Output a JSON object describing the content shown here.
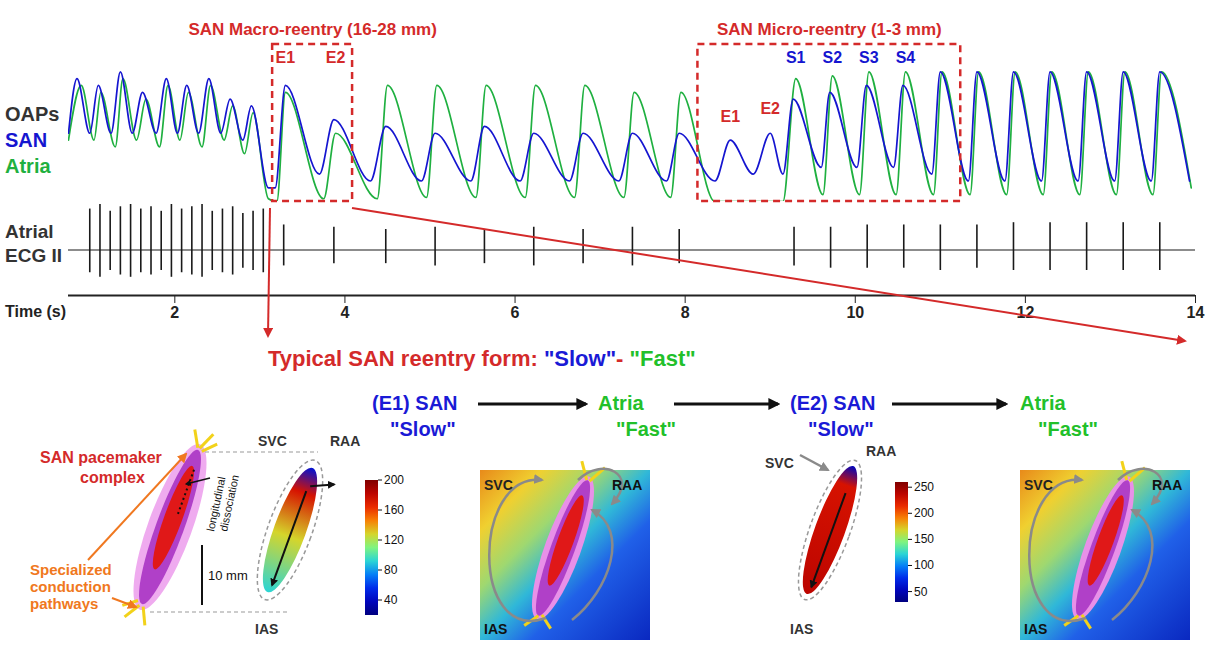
{
  "chart_data": {
    "type": "line",
    "ylabel": "OAPs",
    "xlabel": "Time (s)",
    "xlim": [
      0.75,
      14
    ],
    "xticks": [
      2,
      4,
      6,
      8,
      10,
      12,
      14
    ],
    "ylim": [
      0,
      1.15
    ],
    "tick_labels": "x",
    "series": [
      {
        "name": "SAN",
        "color": "#1515d0",
        "x": [
          0.75,
          0.85,
          1.0,
          1.1,
          1.25,
          1.36,
          1.5,
          1.62,
          1.78,
          1.9,
          2.03,
          2.14,
          2.28,
          2.4,
          2.54,
          2.65,
          2.8,
          2.9,
          3.1,
          3.18,
          3.3,
          3.7,
          3.87,
          4.3,
          4.48,
          4.9,
          5.06,
          5.48,
          5.64,
          6.06,
          6.22,
          6.64,
          6.8,
          7.22,
          7.38,
          7.78,
          7.93,
          8.35,
          8.53,
          8.8,
          9.0,
          9.15,
          9.27,
          9.6,
          9.7,
          10.02,
          10.13,
          10.45,
          10.56,
          10.9,
          11.0,
          11.33,
          11.43,
          11.76,
          11.86,
          12.19,
          12.29,
          12.62,
          12.72,
          13.05,
          13.15,
          13.48,
          13.58,
          13.93
        ],
        "values": [
          0.5,
          0.9,
          0.5,
          0.85,
          0.5,
          0.95,
          0.5,
          0.8,
          0.5,
          0.9,
          0.5,
          0.85,
          0.5,
          0.9,
          0.5,
          0.75,
          0.45,
          0.7,
          0.1,
          0.1,
          0.85,
          0.2,
          0.6,
          0.15,
          0.55,
          0.15,
          0.5,
          0.15,
          0.55,
          0.15,
          0.5,
          0.15,
          0.5,
          0.15,
          0.5,
          0.15,
          0.5,
          0.15,
          0.45,
          0.2,
          0.5,
          0.2,
          0.75,
          0.25,
          0.8,
          0.25,
          0.85,
          0.25,
          0.85,
          0.2,
          0.95,
          0.15,
          0.95,
          0.15,
          0.95,
          0.15,
          0.95,
          0.15,
          0.95,
          0.15,
          0.95,
          0.15,
          0.95,
          0.15
        ]
      },
      {
        "name": "Atria",
        "color": "#1fb040",
        "x": [
          0.75,
          0.9,
          1.05,
          1.13,
          1.3,
          1.39,
          1.55,
          1.66,
          1.82,
          1.92,
          2.06,
          2.16,
          2.32,
          2.42,
          2.58,
          2.68,
          2.82,
          2.92,
          3.1,
          3.2,
          3.3,
          3.75,
          3.89,
          4.38,
          4.5,
          4.96,
          5.08,
          5.54,
          5.66,
          6.12,
          6.24,
          6.7,
          6.82,
          7.28,
          7.4,
          7.83,
          7.95,
          8.35,
          9.15,
          9.3,
          9.62,
          9.73,
          10.05,
          10.16,
          10.48,
          10.59,
          10.92,
          11.02,
          11.35,
          11.45,
          11.78,
          11.88,
          12.21,
          12.31,
          12.64,
          12.74,
          13.07,
          13.17,
          13.5,
          13.6,
          13.95
        ],
        "values": [
          0.45,
          0.85,
          0.45,
          0.8,
          0.4,
          0.9,
          0.45,
          0.75,
          0.4,
          0.85,
          0.45,
          0.8,
          0.4,
          0.85,
          0.45,
          0.7,
          0.35,
          0.65,
          0.02,
          0,
          0.8,
          0.02,
          0.5,
          0.02,
          0.85,
          0.03,
          0.85,
          0.03,
          0.85,
          0.03,
          0.85,
          0.03,
          0.85,
          0.03,
          0.8,
          0.03,
          0.8,
          0,
          0,
          0.9,
          0.05,
          0.92,
          0.05,
          0.95,
          0.05,
          0.95,
          0.05,
          0.95,
          0.05,
          0.95,
          0.05,
          0.95,
          0.05,
          0.95,
          0.05,
          0.95,
          0.05,
          0.95,
          0.05,
          0.95,
          0.1
        ]
      }
    ],
    "ecg": {
      "name": "Atrial ECG II",
      "color": "#1a1a1a",
      "ylim": [
        -1,
        1
      ],
      "baseline": 0,
      "x": [
        1.0,
        1.12,
        1.24,
        1.36,
        1.48,
        1.6,
        1.72,
        1.84,
        1.96,
        2.08,
        2.2,
        2.32,
        2.44,
        2.56,
        2.68,
        2.8,
        2.92,
        3.04,
        3.28,
        3.87,
        4.48,
        5.06,
        5.64,
        6.22,
        6.8,
        7.38,
        7.93,
        9.28,
        9.71,
        10.14,
        10.57,
        11.0,
        11.43,
        11.86,
        12.29,
        12.72,
        13.15,
        13.58
      ],
      "top": [
        0.9,
        1.0,
        0.85,
        0.95,
        1.0,
        0.9,
        0.95,
        0.85,
        1.0,
        0.9,
        0.95,
        1.0,
        0.85,
        0.9,
        0.95,
        0.8,
        0.85,
        0.9,
        0.55,
        0.5,
        0.45,
        0.5,
        0.45,
        0.5,
        0.45,
        0.5,
        0.45,
        0.5,
        0.5,
        0.55,
        0.55,
        0.55,
        0.55,
        0.6,
        0.6,
        0.6,
        0.6,
        0.6
      ],
      "bottom": [
        -0.5,
        -0.6,
        -0.45,
        -0.55,
        -0.6,
        -0.5,
        -0.55,
        -0.45,
        -0.6,
        -0.5,
        -0.55,
        -0.6,
        -0.45,
        -0.5,
        -0.55,
        -0.4,
        -0.45,
        -0.5,
        -0.35,
        -0.3,
        -0.3,
        -0.35,
        -0.3,
        -0.35,
        -0.3,
        -0.35,
        -0.3,
        -0.35,
        -0.4,
        -0.4,
        -0.4,
        -0.45,
        -0.4,
        -0.45,
        -0.45,
        -0.45,
        -0.45,
        -0.45
      ]
    },
    "regions": [
      {
        "label": "SAN Macro-reentry (16-28 mm)",
        "x1": 3.15,
        "x2": 4.09,
        "color": "#d42a2a"
      },
      {
        "label": "SAN Micro-reentry (1-3 mm)",
        "x1": 8.15,
        "x2": 11.24,
        "color": "#d42a2a"
      }
    ],
    "annotations": [
      {
        "text": "E1",
        "x": 3.3,
        "y": 1.05,
        "color": "#d42a2a"
      },
      {
        "text": "E2",
        "x": 3.89,
        "y": 1.05,
        "color": "#d42a2a"
      },
      {
        "text": "E1",
        "x": 8.53,
        "y": 0.62,
        "color": "#d42a2a"
      },
      {
        "text": "E2",
        "x": 9.0,
        "y": 0.68,
        "color": "#d42a2a"
      },
      {
        "text": "S1",
        "x": 9.3,
        "y": 1.05,
        "color": "#1515d0"
      },
      {
        "text": "S2",
        "x": 9.73,
        "y": 1.05,
        "color": "#1515d0"
      },
      {
        "text": "S3",
        "x": 10.16,
        "y": 1.05,
        "color": "#1515d0"
      },
      {
        "text": "S4",
        "x": 10.59,
        "y": 1.05,
        "color": "#1515d0"
      }
    ]
  },
  "diagram": {
    "title": [
      {
        "text": "Typical SAN reentry form: ",
        "color": "#d42a2a"
      },
      {
        "text": "\"Slow\"",
        "color": "#1a1ad6"
      },
      {
        "text": "- ",
        "color": "#d42a2a"
      },
      {
        "text": "\"Fast\"",
        "color": "#22c02a"
      }
    ],
    "steps": [
      {
        "title": "(E1) SAN",
        "subtitle": "\"Slow\"",
        "color": "#1a1ad6"
      },
      {
        "title": "Atria",
        "subtitle": "\"Fast\"",
        "color": "#22c02a"
      },
      {
        "title": "(E2) SAN",
        "subtitle": "\"Slow\"",
        "color": "#1a1ad6"
      },
      {
        "title": "Atria",
        "subtitle": "\"Fast\"",
        "color": "#22c02a"
      }
    ],
    "schematic": {
      "title": "SAN pacemaker complex",
      "pathways": "Specialized conduction pathways",
      "dissociation": "longitudinal dissociation"
    },
    "landmarks": [
      "SVC",
      "RAA",
      "IAS"
    ],
    "scale_bar": "10 mm",
    "colorbars": [
      {
        "range": [
          20,
          200
        ],
        "ticks": [
          40,
          80,
          120,
          160,
          200
        ]
      },
      {
        "range": [
          30,
          260
        ],
        "ticks": [
          50,
          100,
          150,
          200,
          250
        ]
      }
    ]
  }
}
